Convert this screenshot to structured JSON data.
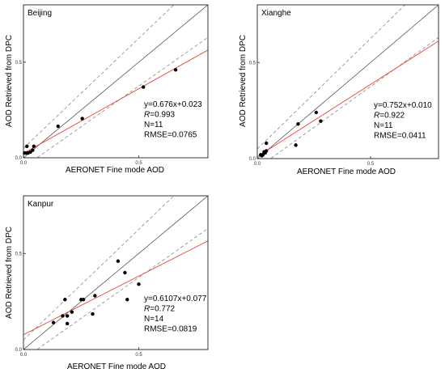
{
  "chart_data": [
    {
      "type": "scatter",
      "site": "Beijing",
      "xlabel": "AERONET Fine mode AOD",
      "ylabel": "AOD Retrieved from DPC",
      "xlim": [
        0,
        0.8
      ],
      "ylim": [
        0,
        0.8
      ],
      "x_ticks": [
        "0.0",
        "0.5"
      ],
      "y_ticks": [
        "0.0",
        "0.5"
      ],
      "points": [
        {
          "x": 0.005,
          "y": 0.025
        },
        {
          "x": 0.012,
          "y": 0.025
        },
        {
          "x": 0.02,
          "y": 0.025
        },
        {
          "x": 0.03,
          "y": 0.03
        },
        {
          "x": 0.015,
          "y": 0.06
        },
        {
          "x": 0.04,
          "y": 0.04
        },
        {
          "x": 0.045,
          "y": 0.06
        },
        {
          "x": 0.15,
          "y": 0.165
        },
        {
          "x": 0.255,
          "y": 0.205
        },
        {
          "x": 0.52,
          "y": 0.37
        },
        {
          "x": 0.66,
          "y": 0.46
        }
      ],
      "fit_slope": 0.676,
      "fit_intercept": 0.023,
      "stats": {
        "equation": "y=0.676x+0.023",
        "r_label": "R",
        "r_value": "=0.993",
        "n": "N=11",
        "rmse": "RMSE=0.0765"
      }
    },
    {
      "type": "scatter",
      "site": "Xianghe",
      "xlabel": "AERONET Fine mode AOD",
      "ylabel": "AOD Retrieved from DPC",
      "xlim": [
        0,
        0.8
      ],
      "ylim": [
        0,
        0.8
      ],
      "x_ticks": [
        "0.0",
        "0.5"
      ],
      "y_ticks": [
        "0.0",
        "0.5"
      ],
      "points": [
        {
          "x": 0.015,
          "y": 0.02
        },
        {
          "x": 0.025,
          "y": 0.02
        },
        {
          "x": 0.03,
          "y": 0.035
        },
        {
          "x": 0.04,
          "y": 0.08
        },
        {
          "x": 0.04,
          "y": 0.04
        },
        {
          "x": 0.17,
          "y": 0.07
        },
        {
          "x": 0.18,
          "y": 0.18
        },
        {
          "x": 0.26,
          "y": 0.24
        },
        {
          "x": 0.28,
          "y": 0.195
        },
        {
          "x": 0.02,
          "y": 0.015
        },
        {
          "x": 0.035,
          "y": 0.03
        }
      ],
      "fit_slope": 0.752,
      "fit_intercept": 0.01,
      "stats": {
        "equation": "y=0.752x+0.010",
        "r_label": "R",
        "r_value": "=0.922",
        "n": "N=11",
        "rmse": "RMSE=0.0411"
      }
    },
    {
      "type": "scatter",
      "site": "Kanpur",
      "xlabel": "AERONET Fine mode AOD",
      "ylabel": "AOD Retrieved from DPC",
      "xlim": [
        0,
        0.8
      ],
      "ylim": [
        0,
        0.8
      ],
      "x_ticks": [
        "0.0",
        "0.5"
      ],
      "y_ticks": [
        "0.0",
        "0.5"
      ],
      "points": [
        {
          "x": 0.13,
          "y": 0.14
        },
        {
          "x": 0.17,
          "y": 0.175
        },
        {
          "x": 0.18,
          "y": 0.26
        },
        {
          "x": 0.19,
          "y": 0.175
        },
        {
          "x": 0.19,
          "y": 0.135
        },
        {
          "x": 0.21,
          "y": 0.195
        },
        {
          "x": 0.25,
          "y": 0.26
        },
        {
          "x": 0.26,
          "y": 0.26
        },
        {
          "x": 0.3,
          "y": 0.185
        },
        {
          "x": 0.31,
          "y": 0.28
        },
        {
          "x": 0.41,
          "y": 0.46
        },
        {
          "x": 0.44,
          "y": 0.4
        },
        {
          "x": 0.45,
          "y": 0.26
        },
        {
          "x": 0.5,
          "y": 0.34
        }
      ],
      "fit_slope": 0.6107,
      "fit_intercept": 0.077,
      "stats": {
        "equation": "y=0.6107x+0.077",
        "r_label": "R",
        "r_value": "=0.772",
        "n": "N=14",
        "rmse": "RMSE=0.0819"
      }
    }
  ]
}
